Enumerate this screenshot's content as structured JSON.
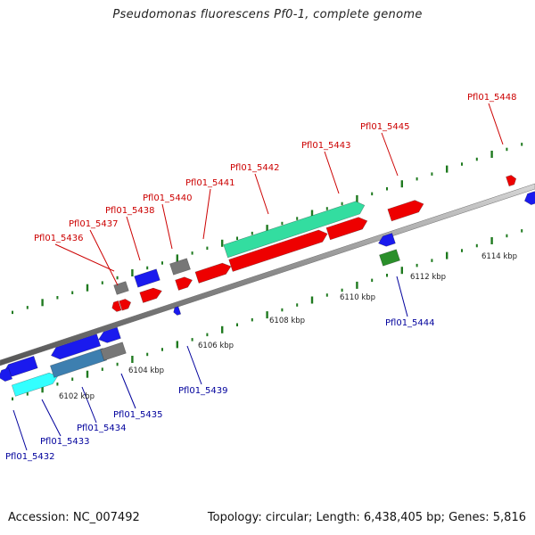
{
  "title": "Pseudomonas fluorescens Pf0-1, complete genome",
  "accession": "Accession: NC_007492",
  "topology": "Topology: circular; Length: 6,438,405 bp; Genes: 5,816",
  "colors": {
    "background": "#ffffff",
    "backbone": "#888888",
    "ticks": "#1f7a1f",
    "top_strand_label": "#cc0000",
    "bottom_strand_label": "#00009c",
    "gene_red": "#ee0000",
    "gene_blue": "#1a1aee",
    "gene_gray": "#777777",
    "gene_cyan": "#33ffff",
    "gene_teal": "#3d7fb0",
    "gene_mint": "#33dda0",
    "gene_green": "#2a8f2a"
  },
  "scale_labels": [
    "6102 kbp",
    "6104 kbp",
    "6106 kbp",
    "6108 kbp",
    "6110 kbp",
    "6112 kbp",
    "6114 kbp"
  ],
  "top_labels": [
    "Pfl01_5436",
    "Pfl01_5437",
    "Pfl01_5438",
    "Pfl01_5440",
    "Pfl01_5441",
    "Pfl01_5442",
    "Pfl01_5443",
    "Pfl01_5445",
    "Pfl01_5448"
  ],
  "bottom_labels": [
    "Pfl01_5432",
    "Pfl01_5433",
    "Pfl01_5434",
    "Pfl01_5435",
    "Pfl01_5439",
    "Pfl01_5444"
  ]
}
